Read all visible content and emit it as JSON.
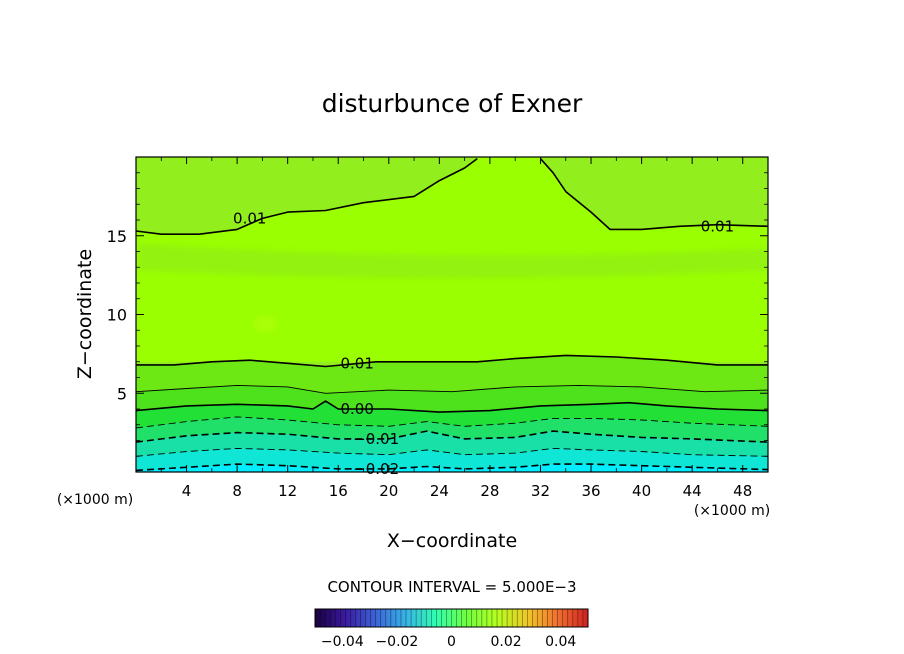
{
  "chart_data": {
    "type": "contour",
    "title": "disturbunce of Exner",
    "xlabel": "X−coordinate",
    "ylabel": "Z−coordinate",
    "x_unit_left": "(×1000 m)",
    "x_unit_right": "(×1000 m)",
    "xlim": [
      0,
      50
    ],
    "ylim": [
      0,
      20
    ],
    "x_ticks": [
      4,
      8,
      12,
      16,
      20,
      24,
      28,
      32,
      36,
      40,
      44,
      48
    ],
    "x_tick_labels": [
      "4",
      "8",
      "12",
      "16",
      "20",
      "24",
      "28",
      "32",
      "36",
      "40",
      "44",
      "48"
    ],
    "y_ticks": [
      5,
      10,
      15
    ],
    "y_tick_labels": [
      "5",
      "10",
      "15"
    ],
    "contour_interval_label": "CONTOUR INTERVAL = 5.000E−3",
    "contour_interval": 0.005,
    "contours": [
      {
        "level": 0.01,
        "style": "solid",
        "label": "0.01",
        "points": [
          [
            0,
            15.3
          ],
          [
            2,
            15.1
          ],
          [
            5,
            15.1
          ],
          [
            8,
            15.4
          ],
          [
            10,
            16.1
          ],
          [
            12,
            16.5
          ],
          [
            15,
            16.6
          ],
          [
            18,
            17.1
          ],
          [
            22,
            17.5
          ],
          [
            24,
            18.5
          ],
          [
            26,
            19.3
          ],
          [
            27,
            19.9
          ]
        ]
      },
      {
        "level": 0.01,
        "style": "solid",
        "label": "",
        "points": [
          [
            32,
            19.9
          ],
          [
            33,
            19
          ],
          [
            34,
            17.8
          ],
          [
            36,
            16.5
          ],
          [
            37.5,
            15.4
          ],
          [
            40,
            15.4
          ],
          [
            43,
            15.6
          ],
          [
            46,
            15.7
          ],
          [
            50,
            15.6
          ]
        ]
      },
      {
        "level": 0.01,
        "style": "solid",
        "label": "0.01",
        "points": [
          [
            0,
            6.8
          ],
          [
            3,
            6.8
          ],
          [
            6,
            7
          ],
          [
            9,
            7.1
          ],
          [
            12,
            6.9
          ],
          [
            15,
            6.7
          ],
          [
            19,
            7
          ],
          [
            22,
            7
          ],
          [
            27,
            7
          ],
          [
            30,
            7.2
          ],
          [
            34,
            7.4
          ],
          [
            38,
            7.3
          ],
          [
            42,
            7.1
          ],
          [
            46,
            6.8
          ],
          [
            50,
            6.8
          ]
        ]
      },
      {
        "level": 0.005,
        "style": "solid",
        "label": "",
        "points": [
          [
            0,
            5.1
          ],
          [
            4,
            5.3
          ],
          [
            8,
            5.5
          ],
          [
            12,
            5.4
          ],
          [
            15,
            5
          ],
          [
            20,
            5.2
          ],
          [
            25,
            5.1
          ],
          [
            30,
            5.4
          ],
          [
            35,
            5.5
          ],
          [
            40,
            5.4
          ],
          [
            45,
            5.1
          ],
          [
            50,
            5.2
          ]
        ]
      },
      {
        "level": 0.0,
        "style": "solid",
        "label": "0.00",
        "points": [
          [
            0,
            3.9
          ],
          [
            4,
            4.2
          ],
          [
            8,
            4.3
          ],
          [
            12,
            4.2
          ],
          [
            14,
            4
          ],
          [
            15,
            4.5
          ],
          [
            16,
            4
          ],
          [
            20,
            4
          ],
          [
            24,
            3.8
          ],
          [
            28,
            3.9
          ],
          [
            32,
            4.2
          ],
          [
            36,
            4.3
          ],
          [
            39,
            4.4
          ],
          [
            42,
            4.2
          ],
          [
            46,
            4
          ],
          [
            50,
            3.9
          ]
        ]
      },
      {
        "level": -0.005,
        "style": "dashed",
        "label": "",
        "points": [
          [
            0,
            2.8
          ],
          [
            4,
            3.2
          ],
          [
            8,
            3.5
          ],
          [
            12,
            3.3
          ],
          [
            16,
            3
          ],
          [
            20,
            2.9
          ],
          [
            23,
            3.2
          ],
          [
            26,
            2.9
          ],
          [
            30,
            3.1
          ],
          [
            33,
            3.4
          ],
          [
            36,
            3.4
          ],
          [
            40,
            3.3
          ],
          [
            44,
            3.1
          ],
          [
            50,
            2.9
          ]
        ]
      },
      {
        "level": -0.01,
        "style": "dashed",
        "label": "−0.01",
        "points": [
          [
            0,
            1.9
          ],
          [
            4,
            2.3
          ],
          [
            8,
            2.5
          ],
          [
            12,
            2.4
          ],
          [
            16,
            2.1
          ],
          [
            20,
            2.1
          ],
          [
            23,
            2.6
          ],
          [
            26,
            2.1
          ],
          [
            30,
            2.2
          ],
          [
            33,
            2.6
          ],
          [
            36,
            2.4
          ],
          [
            40,
            2.2
          ],
          [
            44,
            2.1
          ],
          [
            50,
            1.9
          ]
        ]
      },
      {
        "level": -0.015,
        "style": "dashed",
        "label": "",
        "points": [
          [
            0,
            1
          ],
          [
            4,
            1.3
          ],
          [
            8,
            1.5
          ],
          [
            12,
            1.4
          ],
          [
            16,
            1.2
          ],
          [
            20,
            1.1
          ],
          [
            23,
            1.4
          ],
          [
            26,
            1.1
          ],
          [
            30,
            1.2
          ],
          [
            33,
            1.5
          ],
          [
            36,
            1.4
          ],
          [
            40,
            1.3
          ],
          [
            44,
            1.1
          ],
          [
            50,
            1
          ]
        ]
      },
      {
        "level": -0.02,
        "style": "dashed",
        "label": "−0.02",
        "points": [
          [
            0,
            0.1
          ],
          [
            4,
            0.3
          ],
          [
            8,
            0.5
          ],
          [
            12,
            0.4
          ],
          [
            16,
            0.2
          ],
          [
            20,
            0.2
          ],
          [
            23,
            0.35
          ],
          [
            26,
            0.2
          ],
          [
            30,
            0.3
          ],
          [
            33,
            0.5
          ],
          [
            36,
            0.5
          ],
          [
            40,
            0.4
          ],
          [
            44,
            0.3
          ],
          [
            50,
            0.15
          ]
        ]
      }
    ],
    "fill_colors": {
      "top_band": "#92ee1c",
      "upper_band": "#8ee81e",
      "mid_band": "#9aff00",
      "band_0_01": "#6ee815",
      "band_0_005": "#4ee21c",
      "band_0_00": "#22e035",
      "band_m0_005": "#20e06a",
      "band_m0_01": "#18e0a6",
      "band_m0_015": "#10e6d6",
      "band_m0_02": "#00eeff"
    },
    "colorbar": {
      "range": [
        -0.05,
        0.05
      ],
      "ticks": [
        -0.04,
        -0.02,
        0,
        0.02,
        0.04
      ],
      "tick_labels": [
        "−0.04",
        "−0.02",
        "0",
        "0.02",
        "0.04"
      ],
      "colors": [
        "#1a0040",
        "#3a1aa0",
        "#3c64d8",
        "#37b4e8",
        "#30ffb0",
        "#6eff40",
        "#b4ff20",
        "#f0c828",
        "#f07030",
        "#d02020"
      ]
    }
  }
}
